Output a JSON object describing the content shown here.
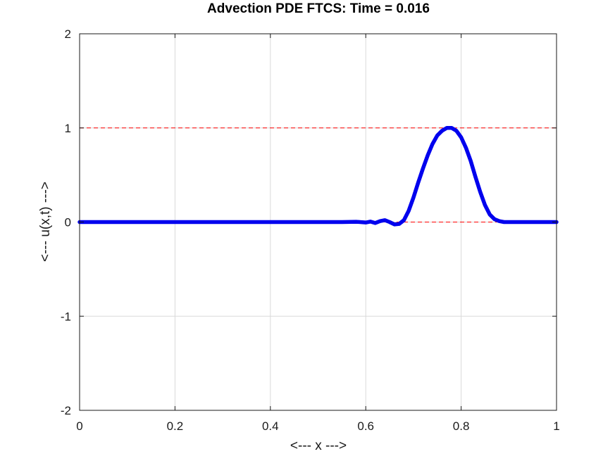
{
  "chart_data": {
    "type": "line",
    "title": "Advection PDE FTCS: Time = 0.016",
    "xlabel": "<--- x --->",
    "ylabel": "<--- u(x,t) --->",
    "xlim": [
      0,
      1
    ],
    "ylim": [
      -2,
      2
    ],
    "xticks": [
      0,
      0.2,
      0.4,
      0.6,
      0.8,
      1
    ],
    "xtick_labels": [
      "0",
      "0.2",
      "0.4",
      "0.6",
      "0.8",
      "1"
    ],
    "yticks": [
      -2,
      -1,
      0,
      1,
      2
    ],
    "ytick_labels": [
      "-2",
      "-1",
      "0",
      "1",
      "2"
    ],
    "grid": true,
    "reference_lines": [
      {
        "y": 1,
        "color": "#ff0000",
        "style": "dashed"
      },
      {
        "y": 0,
        "color": "#ff0000",
        "style": "dashed"
      }
    ],
    "series": [
      {
        "color": "#0000ee",
        "x": [
          0,
          0.1,
          0.2,
          0.3,
          0.4,
          0.5,
          0.55,
          0.58,
          0.6,
          0.61,
          0.62,
          0.63,
          0.64,
          0.65,
          0.66,
          0.67,
          0.68,
          0.69,
          0.7,
          0.71,
          0.72,
          0.73,
          0.74,
          0.75,
          0.76,
          0.77,
          0.78,
          0.79,
          0.8,
          0.81,
          0.82,
          0.83,
          0.84,
          0.85,
          0.86,
          0.87,
          0.88,
          0.89,
          0.9,
          0.92,
          0.95,
          1.0
        ],
        "y": [
          0,
          0,
          0,
          0,
          0,
          0,
          0.0,
          0.003,
          -0.005,
          0.005,
          -0.01,
          0.01,
          0.02,
          0.0,
          -0.025,
          -0.02,
          0.02,
          0.12,
          0.26,
          0.42,
          0.57,
          0.71,
          0.83,
          0.92,
          0.97,
          1.0,
          1.0,
          0.97,
          0.9,
          0.79,
          0.65,
          0.48,
          0.32,
          0.18,
          0.08,
          0.03,
          0.01,
          0.0,
          0.0,
          0.0,
          0.0,
          0.0
        ]
      }
    ]
  }
}
